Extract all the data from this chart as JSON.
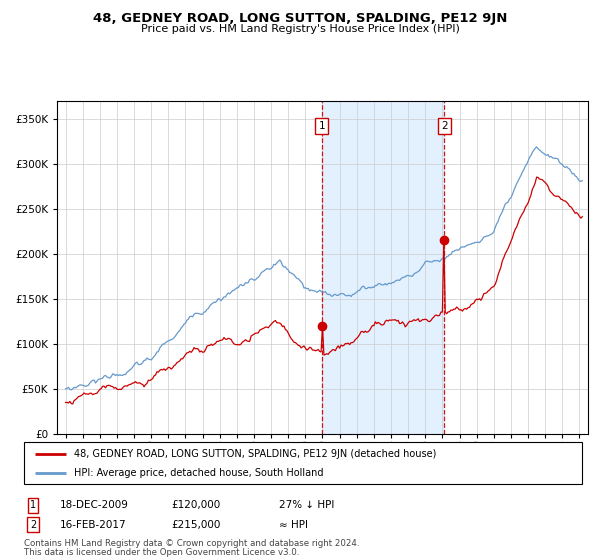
{
  "title": "48, GEDNEY ROAD, LONG SUTTON, SPALDING, PE12 9JN",
  "subtitle": "Price paid vs. HM Land Registry's House Price Index (HPI)",
  "legend_line1": "48, GEDNEY ROAD, LONG SUTTON, SPALDING, PE12 9JN (detached house)",
  "legend_line2": "HPI: Average price, detached house, South Holland",
  "sale1_date": "18-DEC-2009",
  "sale1_price": 120000,
  "sale1_label": "27% ↓ HPI",
  "sale2_date": "16-FEB-2017",
  "sale2_price": 215000,
  "sale2_label": "≈ HPI",
  "footer1": "Contains HM Land Registry data © Crown copyright and database right 2024.",
  "footer2": "This data is licensed under the Open Government Licence v3.0.",
  "hpi_color": "#6699cc",
  "price_color": "#cc0000",
  "sale1_x": 2009.96,
  "sale2_x": 2017.12,
  "ylim_max": 370000,
  "xlim_min": 1994.5,
  "xlim_max": 2025.5,
  "shade_color": "#ddeeff",
  "grid_color": "#cccccc"
}
